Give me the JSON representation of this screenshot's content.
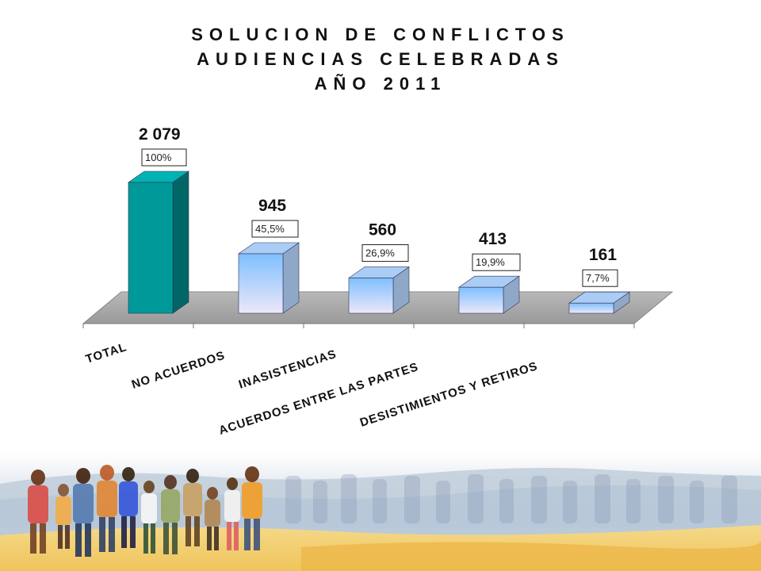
{
  "title_lines": [
    "SOLUCION DE CONFLICTOS",
    "AUDIENCIAS CELEBRADAS",
    "AÑO 2011"
  ],
  "colors": {
    "total_front": "#009999",
    "total_side": "#006666",
    "bar_front_top": "#7fbfff",
    "bar_front_bottom": "#ece8f8",
    "bar_side": "#8fa8c8",
    "floor": "#a6a6a6"
  },
  "chart_data": {
    "type": "bar",
    "title": "SOLUCION DE CONFLICTOS AUDIENCIAS CELEBRADAS AÑO 2011",
    "categories": [
      "TOTAL",
      "NO ACUERDOS",
      "INASISTENCIAS",
      "ACUERDOS ENTRE LAS PARTES",
      "DESISTIMIENTOS Y RETIROS"
    ],
    "values": [
      2079,
      945,
      560,
      413,
      161
    ],
    "value_labels": [
      "2 079",
      "945",
      "560",
      "413",
      "161"
    ],
    "percent_labels": [
      "100%",
      "45,5%",
      "26,9%",
      "19,9%",
      "7,7%"
    ],
    "ylim": [
      0,
      2079
    ],
    "grid": false,
    "legend": "none",
    "style": "3d-column"
  }
}
